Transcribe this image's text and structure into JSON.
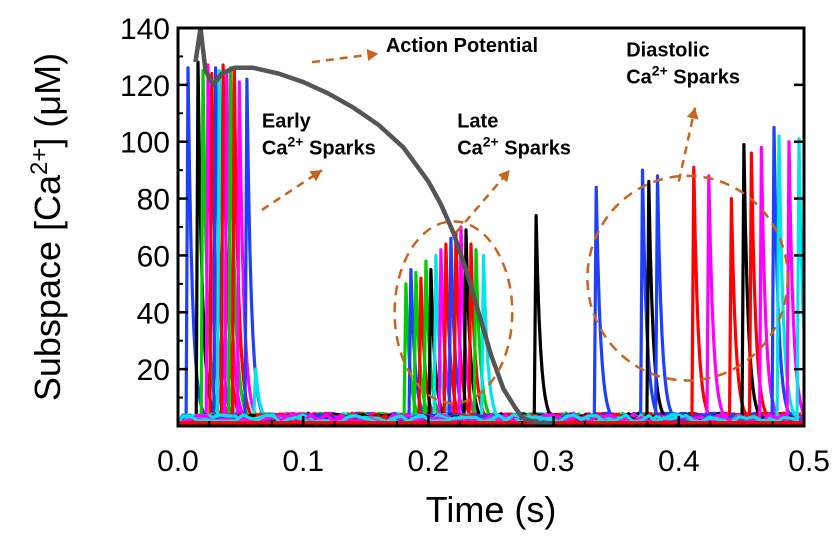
{
  "chart_data": {
    "type": "line",
    "title": "",
    "xlabel": "Time (s)",
    "ylabel_parts": [
      "Subspace [Ca",
      "2+",
      "] (μM)"
    ],
    "xlim": [
      0.0,
      0.5
    ],
    "ylim": [
      0,
      140
    ],
    "xticks": [
      0.0,
      0.1,
      0.2,
      0.3,
      0.4,
      0.5
    ],
    "xtick_labels": [
      "0.0",
      "0.1",
      "0.2",
      "0.3",
      "0.4",
      "0.5"
    ],
    "yticks": [
      20,
      40,
      60,
      80,
      100,
      120,
      140
    ],
    "ytick_labels": [
      "20",
      "40",
      "60",
      "80",
      "100",
      "120",
      "140"
    ],
    "grid": false,
    "action_potential": {
      "name": "Action Potential",
      "color": "#555555",
      "x": [
        0.014,
        0.018,
        0.022,
        0.028,
        0.035,
        0.045,
        0.06,
        0.08,
        0.1,
        0.12,
        0.14,
        0.16,
        0.18,
        0.2,
        0.21,
        0.22,
        0.23,
        0.24,
        0.25,
        0.26,
        0.27,
        0.275,
        0.28,
        0.29,
        0.3
      ],
      "y": [
        128,
        140,
        125,
        120,
        124,
        126,
        126,
        124,
        121,
        117,
        112,
        106,
        98,
        86,
        78,
        68,
        55,
        40,
        25,
        13,
        6,
        3,
        2,
        1,
        1
      ]
    },
    "sparks": [
      {
        "t": 0.008,
        "peak": 126,
        "color": "#1f3fff"
      },
      {
        "t": 0.016,
        "peak": 128,
        "color": "#000000"
      },
      {
        "t": 0.02,
        "peak": 125,
        "color": "#00cc00"
      },
      {
        "t": 0.024,
        "peak": 127,
        "color": "#ff00ff"
      },
      {
        "t": 0.027,
        "peak": 124,
        "color": "#ff0000"
      },
      {
        "t": 0.03,
        "peak": 126,
        "color": "#1f3fff"
      },
      {
        "t": 0.033,
        "peak": 125,
        "color": "#00e5e5"
      },
      {
        "t": 0.036,
        "peak": 127,
        "color": "#ff0000"
      },
      {
        "t": 0.039,
        "peak": 124,
        "color": "#ff00ff"
      },
      {
        "t": 0.042,
        "peak": 126,
        "color": "#00cc00"
      },
      {
        "t": 0.045,
        "peak": 125,
        "color": "#ff0000"
      },
      {
        "t": 0.049,
        "peak": 121,
        "color": "#ff00ff"
      },
      {
        "t": 0.055,
        "peak": 122,
        "color": "#1f3fff"
      },
      {
        "t": 0.062,
        "peak": 20,
        "color": "#00e5e5"
      },
      {
        "t": 0.182,
        "peak": 50,
        "color": "#00cc00"
      },
      {
        "t": 0.186,
        "peak": 55,
        "color": "#1f3fff"
      },
      {
        "t": 0.19,
        "peak": 54,
        "color": "#00cc00"
      },
      {
        "t": 0.194,
        "peak": 52,
        "color": "#ff0000"
      },
      {
        "t": 0.198,
        "peak": 58,
        "color": "#00cc00"
      },
      {
        "t": 0.202,
        "peak": 55,
        "color": "#000000"
      },
      {
        "t": 0.206,
        "peak": 60,
        "color": "#00e5e5"
      },
      {
        "t": 0.21,
        "peak": 62,
        "color": "#ff00ff"
      },
      {
        "t": 0.214,
        "peak": 64,
        "color": "#ff0000"
      },
      {
        "t": 0.218,
        "peak": 66,
        "color": "#1f3fff"
      },
      {
        "t": 0.222,
        "peak": 68,
        "color": "#ff0000"
      },
      {
        "t": 0.226,
        "peak": 70,
        "color": "#ff00ff"
      },
      {
        "t": 0.23,
        "peak": 69,
        "color": "#000000"
      },
      {
        "t": 0.234,
        "peak": 64,
        "color": "#ff0000"
      },
      {
        "t": 0.238,
        "peak": 62,
        "color": "#00cc00"
      },
      {
        "t": 0.244,
        "peak": 60,
        "color": "#00e5e5"
      },
      {
        "t": 0.286,
        "peak": 74,
        "color": "#000000"
      },
      {
        "t": 0.334,
        "peak": 84,
        "color": "#1f3fff"
      },
      {
        "t": 0.371,
        "peak": 90,
        "color": "#1f3fff"
      },
      {
        "t": 0.376,
        "peak": 86,
        "color": "#000000"
      },
      {
        "t": 0.383,
        "peak": 88,
        "color": "#1f3fff"
      },
      {
        "t": 0.412,
        "peak": 91,
        "color": "#ff0000"
      },
      {
        "t": 0.424,
        "peak": 88,
        "color": "#ff00ff"
      },
      {
        "t": 0.442,
        "peak": 80,
        "color": "#ff0000"
      },
      {
        "t": 0.452,
        "peak": 99,
        "color": "#000000"
      },
      {
        "t": 0.458,
        "peak": 96,
        "color": "#ff0000"
      },
      {
        "t": 0.466,
        "peak": 98,
        "color": "#ff00ff"
      },
      {
        "t": 0.476,
        "peak": 105,
        "color": "#1f3fff"
      },
      {
        "t": 0.48,
        "peak": 102,
        "color": "#00e5e5"
      },
      {
        "t": 0.488,
        "peak": 100,
        "color": "#ff00ff"
      },
      {
        "t": 0.496,
        "peak": 101,
        "color": "#00e5e5"
      }
    ],
    "regions": [
      {
        "name": "late-sparks-region",
        "cx": 0.22,
        "cy": 40,
        "rx": 0.047,
        "ry": 32
      },
      {
        "name": "diastolic-sparks-region",
        "cx": 0.407,
        "cy": 52,
        "rx": 0.08,
        "ry": 36
      }
    ],
    "annotations": [
      {
        "name": "action-potential-label",
        "lines": [
          {
            "text": "Action Potential"
          }
        ],
        "x": 0.166,
        "y": 131.5,
        "anchor": "start",
        "arrow_from": [
          0.107,
          128
        ],
        "arrow_to": [
          0.16,
          131
        ]
      },
      {
        "name": "early-sparks-label",
        "lines": [
          {
            "text": "Early"
          },
          {
            "text": "Ca",
            "sup": "2+",
            "tail": " Sparks"
          }
        ],
        "x": 0.067,
        "y": 105,
        "anchor": "start",
        "arrow_from": [
          0.067,
          76
        ],
        "arrow_to": [
          0.115,
          90
        ]
      },
      {
        "name": "late-sparks-label",
        "lines": [
          {
            "text": "Late"
          },
          {
            "text": "Ca",
            "sup": "2+",
            "tail": " Sparks"
          }
        ],
        "x": 0.223,
        "y": 105,
        "anchor": "start",
        "arrow_from": [
          0.222,
          68
        ],
        "arrow_to": [
          0.265,
          90
        ]
      },
      {
        "name": "diastolic-sparks-label",
        "lines": [
          {
            "text": "Diastolic"
          },
          {
            "text": "Ca",
            "sup": "2+",
            "tail": " Sparks"
          }
        ],
        "x": 0.358,
        "y": 130,
        "anchor": "start",
        "arrow_from": [
          0.4,
          86
        ],
        "arrow_to": [
          0.413,
          112
        ]
      }
    ],
    "colors": {
      "annotation": "#c8641e",
      "axis": "#000000",
      "baseline": "#ff0000"
    }
  }
}
